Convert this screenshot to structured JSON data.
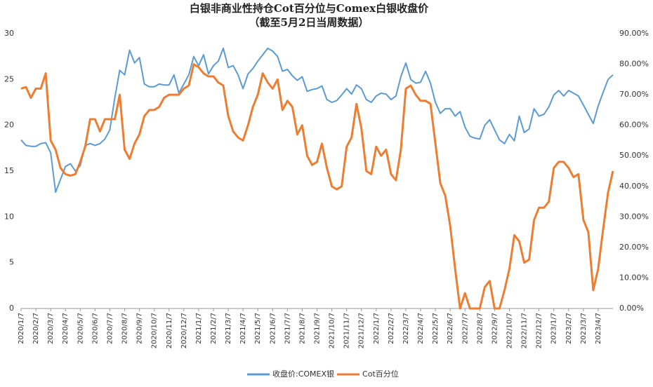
{
  "chart_data": {
    "type": "line",
    "title": "白银非商业性持仓Cot百分位与Comex白银收盘价",
    "subtitle": "（截至5月2日当周数据）",
    "categories": [
      "2020/1/7",
      null,
      null,
      "2020/2/7",
      null,
      null,
      "2020/3/7",
      null,
      null,
      "2020/4/7",
      null,
      null,
      "2020/5/7",
      null,
      null,
      "2020/6/7",
      null,
      null,
      "2020/7/7",
      null,
      null,
      "2020/8/7",
      null,
      null,
      "2020/9/7",
      null,
      null,
      "2020/10/7",
      null,
      null,
      "2020/11/7",
      null,
      null,
      "2020/12/7",
      null,
      null,
      "2021/1/7",
      null,
      null,
      "2021/2/7",
      null,
      null,
      "2021/3/7",
      null,
      null,
      "2021/4/7",
      null,
      null,
      "2021/5/7",
      null,
      null,
      "2021/6/7",
      null,
      null,
      "2021/7/7",
      null,
      null,
      "2021/8/7",
      null,
      null,
      "2021/9/7",
      null,
      null,
      "2021/10/7",
      null,
      null,
      "2021/11/7",
      null,
      null,
      "2021/12/7",
      null,
      null,
      "2022/1/7",
      null,
      null,
      "2022/2/7",
      null,
      null,
      "2022/3/7",
      null,
      null,
      "2022/4/7",
      null,
      null,
      "2022/5/7",
      null,
      null,
      "2022/6/7",
      null,
      null,
      "2022/7/7",
      null,
      null,
      "2022/8/7",
      null,
      null,
      "2022/9/7",
      null,
      null,
      "2022/10/7",
      null,
      null,
      "2022/11/7",
      null,
      null,
      "2022/12/7",
      null,
      null,
      "2023/1/7",
      null,
      null,
      "2023/2/7",
      null,
      null,
      "2023/3/7",
      null,
      null,
      "2023/4/7",
      null,
      null,
      null
    ],
    "series": [
      {
        "name": "收盘价:COMEX银",
        "color": "#5b9bd5",
        "width": 2,
        "axis": "y",
        "values": [
          18.4,
          17.8,
          17.7,
          17.7,
          18.0,
          18.1,
          17.0,
          12.7,
          14.1,
          15.5,
          15.8,
          15.0,
          15.6,
          17.8,
          18.0,
          17.8,
          18.0,
          18.5,
          19.5,
          23,
          26,
          25.5,
          28.2,
          26.8,
          27.4,
          24.5,
          24.2,
          24.2,
          24.5,
          24.4,
          24.4,
          25.5,
          23.5,
          24.5,
          25.5,
          27.5,
          26.5,
          27.7,
          25.6,
          26.5,
          27,
          28.4,
          26.3,
          26.5,
          25.5,
          24,
          25.6,
          26.2,
          27,
          27.7,
          28.4,
          28.1,
          27.5,
          25.9,
          26.1,
          25.4,
          24.9,
          25.3,
          23.7,
          23.9,
          24.0,
          24.3,
          22.8,
          22.5,
          22.7,
          23.3,
          24,
          23.4,
          24.4,
          24.0,
          22.8,
          22.5,
          23.2,
          23.5,
          23.4,
          22.8,
          23.2,
          25.3,
          26.8,
          25.0,
          24.6,
          24.7,
          25.9,
          24.6,
          22.5,
          21.3,
          21.8,
          21.8,
          21.0,
          21.5,
          19.8,
          18.8,
          18.6,
          18.5,
          20.0,
          20.6,
          19.5,
          18.4,
          18.0,
          19.0,
          18.3,
          21.0,
          19.2,
          19.6,
          21.8,
          21.0,
          21.2,
          22.0,
          23.3,
          23.8,
          23.2,
          23.8,
          23.5,
          23.2,
          22.2,
          21.2,
          20.2,
          22.1,
          23.6,
          25.0,
          25.5
        ]
      },
      {
        "name": "Cot百分位",
        "color": "#ed7d31",
        "width": 3,
        "axis": "y2",
        "values": [
          72,
          72.5,
          69,
          72,
          72,
          77,
          55,
          52,
          46,
          44,
          43.5,
          44,
          48,
          53,
          62,
          62,
          58,
          62,
          62,
          62,
          70,
          52,
          49,
          54,
          57,
          63,
          65,
          65,
          66,
          69,
          70,
          70,
          70,
          72,
          73,
          80,
          79,
          77,
          76,
          76,
          74,
          73,
          63,
          58,
          56,
          55,
          60,
          66,
          70,
          77,
          74,
          72,
          75,
          65,
          68,
          66,
          57,
          60,
          50,
          47,
          48,
          54,
          46,
          40,
          39,
          40,
          53,
          56,
          67,
          59,
          45,
          44,
          53,
          50,
          52,
          44,
          42,
          52,
          72,
          73,
          70,
          68,
          68,
          67,
          54,
          41,
          37,
          27,
          13,
          0,
          5,
          0,
          0,
          0,
          7,
          9,
          0,
          0,
          6,
          13,
          24,
          22,
          15,
          16,
          29,
          33,
          33,
          35,
          46,
          48,
          48,
          46,
          43,
          44,
          29,
          25,
          6,
          13,
          26,
          38,
          45
        ]
      }
    ],
    "ylim": [
      0,
      30
    ],
    "yticks": [
      0,
      5,
      10,
      15,
      20,
      25,
      30
    ],
    "y2lim": [
      0,
      90
    ],
    "y2ticks": [
      {
        "value": 0,
        "label": "0.00%"
      },
      {
        "value": 10,
        "label": "10.00%"
      },
      {
        "value": 20,
        "label": "20.00%"
      },
      {
        "value": 30,
        "label": "30.00%"
      },
      {
        "value": 40,
        "label": "40.00%"
      },
      {
        "value": 50,
        "label": "50.00%"
      },
      {
        "value": 60,
        "label": "60.00%"
      },
      {
        "value": 70,
        "label": "70.00%"
      },
      {
        "value": 80,
        "label": "80.00%"
      },
      {
        "value": 90,
        "label": "90.00%"
      }
    ],
    "grid": false,
    "legend": "bottom"
  }
}
